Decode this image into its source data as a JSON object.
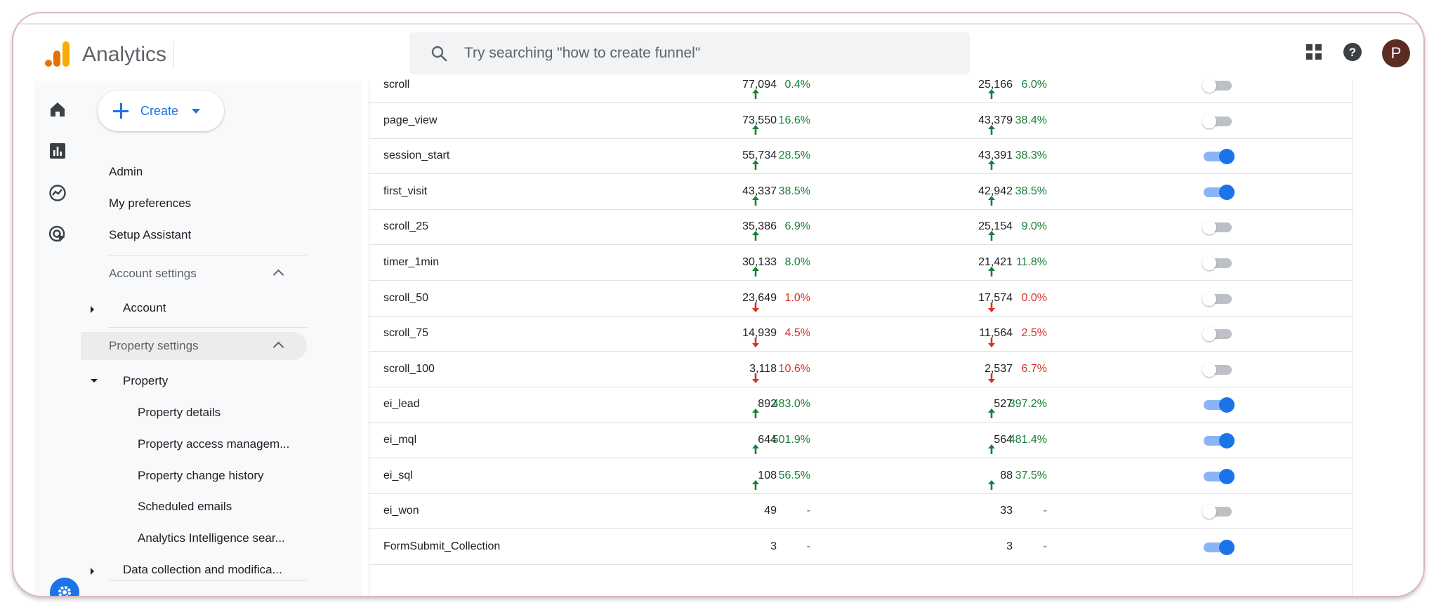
{
  "app": {
    "title": "Analytics"
  },
  "search": {
    "placeholder": "Try searching \"how to create funnel\""
  },
  "topbar": {
    "icons": [
      "apps-grid-icon",
      "help-icon"
    ],
    "avatar_letter": "P"
  },
  "rail": {
    "icons": [
      "home-icon",
      "reports-icon",
      "explore-icon",
      "advertising-icon",
      "settings-gear-icon"
    ]
  },
  "sidenav": {
    "create_label": "Create",
    "items": [
      "Admin",
      "My preferences",
      "Setup Assistant"
    ],
    "account_settings": {
      "title": "Account settings",
      "items": [
        "Account"
      ]
    },
    "property_settings": {
      "title": "Property settings",
      "property_label": "Property",
      "sub_items": [
        "Property details",
        "Property access managem...",
        "Property change history",
        "Scheduled emails",
        "Analytics Intelligence sear..."
      ],
      "data_collection": "Data collection and modifica..."
    }
  },
  "colors": {
    "accent": "#1a73e8",
    "positive": "#188038",
    "negative": "#d93025",
    "logo_orange": "#f9ab00",
    "logo_dark_orange": "#e37400"
  },
  "events": [
    {
      "name": "scroll",
      "count": "77,094",
      "count_trend": "up",
      "count_change": "0.4%",
      "users": "25,166",
      "users_trend": "up",
      "users_change": "6.0%",
      "conversion": false
    },
    {
      "name": "page_view",
      "count": "73,550",
      "count_trend": "up",
      "count_change": "16.6%",
      "users": "43,379",
      "users_trend": "up",
      "users_change": "38.4%",
      "conversion": false
    },
    {
      "name": "session_start",
      "count": "55,734",
      "count_trend": "up",
      "count_change": "28.5%",
      "users": "43,391",
      "users_trend": "up",
      "users_change": "38.3%",
      "conversion": true
    },
    {
      "name": "first_visit",
      "count": "43,337",
      "count_trend": "up",
      "count_change": "38.5%",
      "users": "42,942",
      "users_trend": "up",
      "users_change": "38.5%",
      "conversion": true
    },
    {
      "name": "scroll_25",
      "count": "35,386",
      "count_trend": "up",
      "count_change": "6.9%",
      "users": "25,154",
      "users_trend": "up",
      "users_change": "9.0%",
      "conversion": false
    },
    {
      "name": "timer_1min",
      "count": "30,133",
      "count_trend": "up",
      "count_change": "8.0%",
      "users": "21,421",
      "users_trend": "up",
      "users_change": "11.8%",
      "conversion": false
    },
    {
      "name": "scroll_50",
      "count": "23,649",
      "count_trend": "down",
      "count_change": "1.0%",
      "users": "17,574",
      "users_trend": "down",
      "users_change": "0.0%",
      "conversion": false
    },
    {
      "name": "scroll_75",
      "count": "14,939",
      "count_trend": "down",
      "count_change": "4.5%",
      "users": "11,564",
      "users_trend": "down",
      "users_change": "2.5%",
      "conversion": false
    },
    {
      "name": "scroll_100",
      "count": "3,118",
      "count_trend": "down",
      "count_change": "10.6%",
      "users": "2,537",
      "users_trend": "down",
      "users_change": "6.7%",
      "conversion": false
    },
    {
      "name": "ei_lead",
      "count": "892",
      "count_trend": "up",
      "count_change": "483.0%",
      "users": "527",
      "users_trend": "up",
      "users_change": "397.2%",
      "conversion": true
    },
    {
      "name": "ei_mql",
      "count": "644",
      "count_trend": "up",
      "count_change": "501.9%",
      "users": "564",
      "users_trend": "up",
      "users_change": "481.4%",
      "conversion": true
    },
    {
      "name": "ei_sql",
      "count": "108",
      "count_trend": "up",
      "count_change": "56.5%",
      "users": "88",
      "users_trend": "up",
      "users_change": "37.5%",
      "conversion": true
    },
    {
      "name": "ei_won",
      "count": "49",
      "count_trend": "none",
      "count_change": "-",
      "users": "33",
      "users_trend": "none",
      "users_change": "-",
      "conversion": false
    },
    {
      "name": "FormSubmit_Collection",
      "count": "3",
      "count_trend": "none",
      "count_change": "-",
      "users": "3",
      "users_trend": "none",
      "users_change": "-",
      "conversion": true
    }
  ]
}
